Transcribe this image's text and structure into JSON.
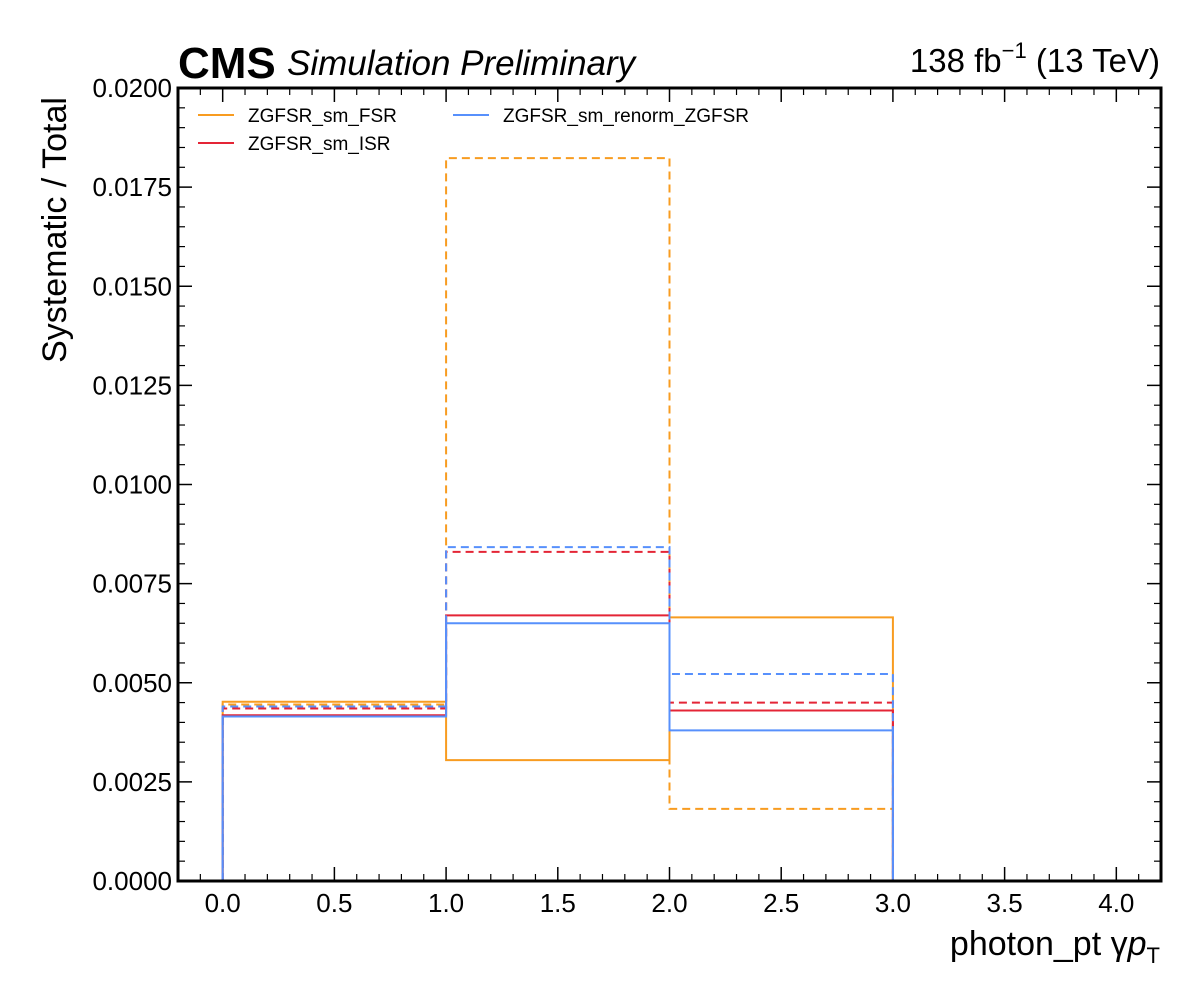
{
  "header": {
    "experiment": "CMS",
    "status": "Simulation Preliminary",
    "lumi_value": "138 fb",
    "lumi_exponent": "−1",
    "energy": "(13 TeV)"
  },
  "chart_data": {
    "type": "step",
    "xlabel_main": "photon_pt",
    "xlabel_symbol": "γ",
    "xlabel_p": "p",
    "xlabel_sub": "T",
    "ylabel": "Systematic / Total",
    "xlim": [
      -0.2,
      4.2
    ],
    "ylim": [
      0.0,
      0.02
    ],
    "xticks": [
      "0.0",
      "0.5",
      "1.0",
      "1.5",
      "2.0",
      "2.5",
      "3.0",
      "3.5",
      "4.0"
    ],
    "yticks": [
      "0.0000",
      "0.0025",
      "0.0050",
      "0.0075",
      "0.0100",
      "0.0125",
      "0.0150",
      "0.0175",
      "0.0200"
    ],
    "bin_edges": [
      0,
      1,
      2,
      3
    ],
    "series": [
      {
        "name": "ZGFSR_sm_FSR",
        "color": "#f89c20",
        "style": "solid",
        "values": [
          0.00452,
          0.00305,
          0.00665
        ]
      },
      {
        "name": "ZGFSR_sm_FSR",
        "color": "#f89c20",
        "style": "dashed",
        "values": [
          0.00445,
          0.01823,
          0.00182
        ]
      },
      {
        "name": "ZGFSR_sm_ISR",
        "color": "#e42536",
        "style": "solid",
        "values": [
          0.00418,
          0.0067,
          0.0043
        ]
      },
      {
        "name": "ZGFSR_sm_ISR",
        "color": "#e42536",
        "style": "dashed",
        "values": [
          0.00435,
          0.0083,
          0.0045
        ]
      },
      {
        "name": "ZGFSR_sm_renorm_ZGFSR",
        "color": "#5790fc",
        "style": "solid",
        "values": [
          0.00415,
          0.0065,
          0.0038
        ]
      },
      {
        "name": "ZGFSR_sm_renorm_ZGFSR",
        "color": "#5790fc",
        "style": "dashed",
        "values": [
          0.0044,
          0.00842,
          0.00522
        ]
      }
    ],
    "legend": [
      {
        "label": "ZGFSR_sm_FSR",
        "color": "#f89c20"
      },
      {
        "label": "ZGFSR_sm_ISR",
        "color": "#e42536"
      },
      {
        "label": "ZGFSR_sm_renorm_ZGFSR",
        "color": "#5790fc"
      }
    ],
    "legend_position": "top-left",
    "grid": false
  }
}
